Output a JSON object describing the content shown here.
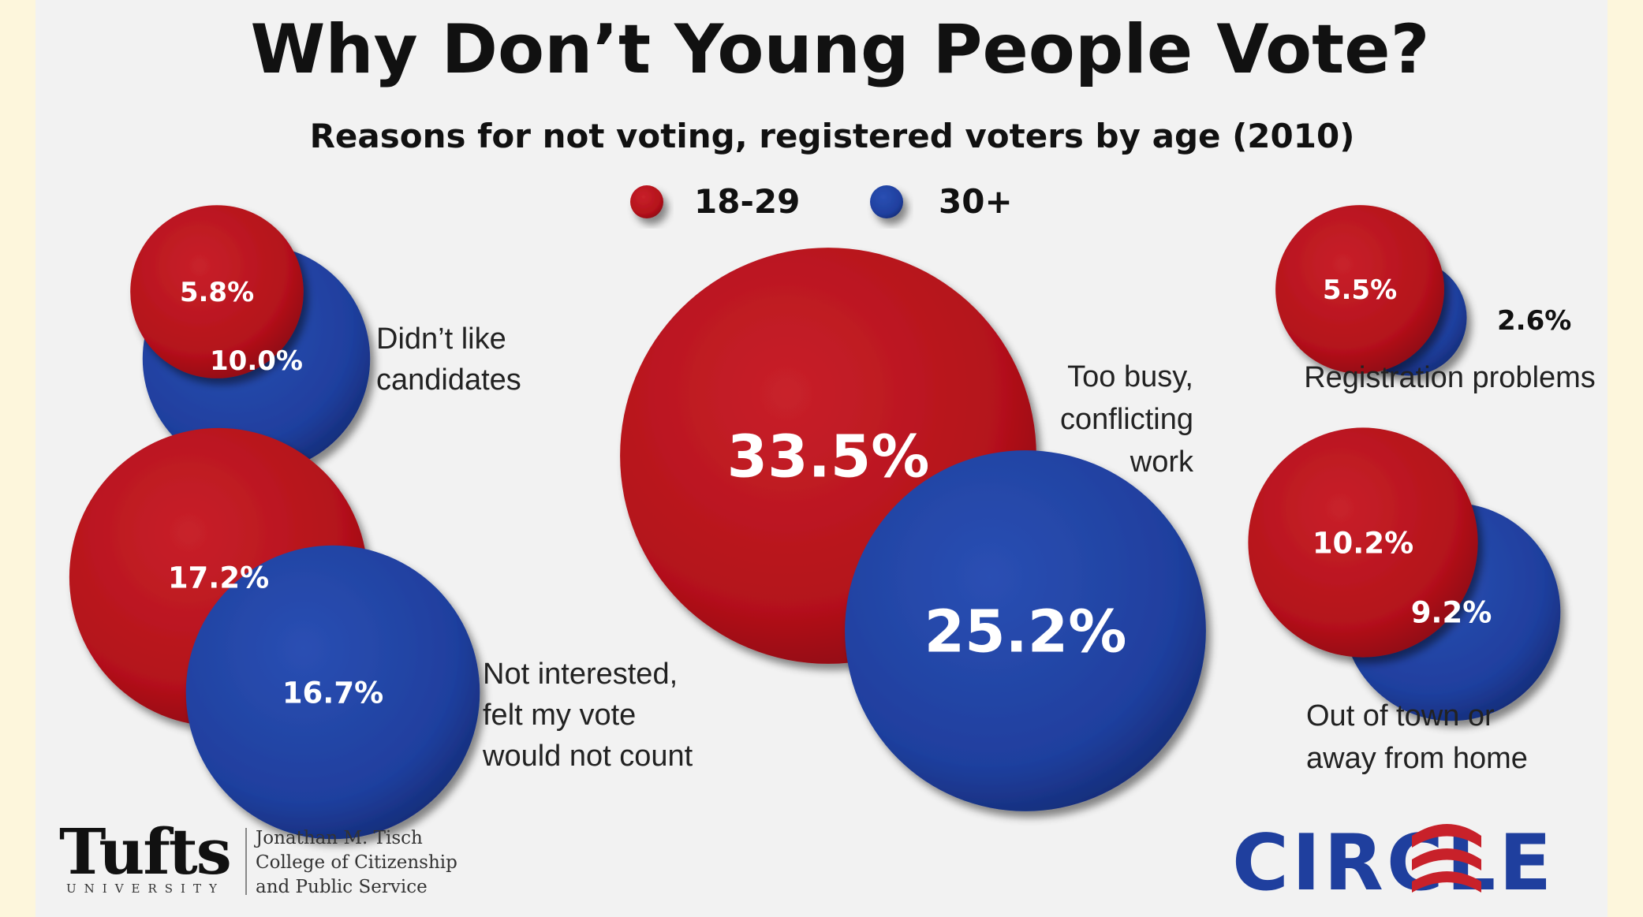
{
  "chart_data": {
    "type": "bubble",
    "title": "Why Don’t Young People Vote?",
    "subtitle": "Reasons for not voting, registered voters by age (2010)",
    "legend": [
      {
        "name": "18-29",
        "color": "#b5121b"
      },
      {
        "name": "30+",
        "color": "#1f3f9e"
      }
    ],
    "series_names": [
      "18-29",
      "30+"
    ],
    "categories": [
      {
        "label": [
          "Didn’t like",
          "candidates"
        ],
        "values": [
          5.8,
          10.0
        ],
        "display": [
          "5.8%",
          "10.0%"
        ]
      },
      {
        "label": [
          "Not interested,",
          "felt my vote",
          "would not count"
        ],
        "values": [
          17.2,
          16.7
        ],
        "display": [
          "17.2%",
          "16.7%"
        ]
      },
      {
        "label": [
          "Too busy,",
          "conflicting",
          "work"
        ],
        "values": [
          33.5,
          25.2
        ],
        "display": [
          "33.5%",
          "25.2%"
        ]
      },
      {
        "label": [
          "Registration problems"
        ],
        "values": [
          5.5,
          2.6
        ],
        "display": [
          "5.5%",
          "2.6%"
        ]
      },
      {
        "label": [
          "Out of town or",
          "away from home"
        ],
        "values": [
          10.2,
          9.2
        ],
        "display": [
          "10.2%",
          "9.2%"
        ]
      }
    ]
  },
  "footer": {
    "tufts_name": "Tufts",
    "tufts_sub": "UNIVERSITY",
    "college_lines": [
      "Jonathan M. Tisch",
      "College of Citizenship",
      "and Public Service"
    ],
    "circle_logo_text": "CIRCLE"
  },
  "colors": {
    "red": "#b5121b",
    "blue": "#1f3f9e",
    "background": "#f2f2f2"
  }
}
